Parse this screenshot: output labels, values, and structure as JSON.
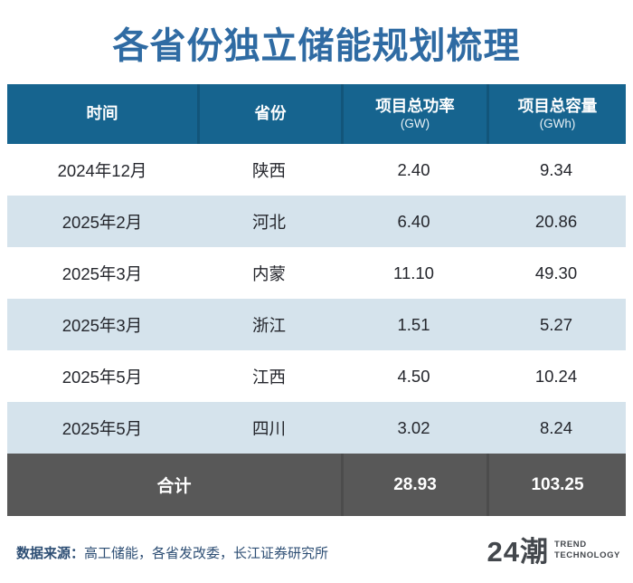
{
  "title": "各省份独立储能规划梳理",
  "table": {
    "columns": [
      {
        "label": "时间",
        "unit": ""
      },
      {
        "label": "省份",
        "unit": ""
      },
      {
        "label": "项目总功率",
        "unit": "(GW)"
      },
      {
        "label": "项目总容量",
        "unit": "(GWh)"
      }
    ],
    "rows": [
      {
        "time": "2024年12月",
        "province": "陕西",
        "power": "2.40",
        "capacity": "9.34"
      },
      {
        "time": "2025年2月",
        "province": "河北",
        "power": "6.40",
        "capacity": "20.86"
      },
      {
        "time": "2025年3月",
        "province": "内蒙",
        "power": "11.10",
        "capacity": "49.30"
      },
      {
        "time": "2025年3月",
        "province": "浙江",
        "power": "1.51",
        "capacity": "5.27"
      },
      {
        "time": "2025年5月",
        "province": "江西",
        "power": "4.50",
        "capacity": "10.24"
      },
      {
        "time": "2025年5月",
        "province": "四川",
        "power": "3.02",
        "capacity": "8.24"
      }
    ],
    "total": {
      "label": "合计",
      "power": "28.93",
      "capacity": "103.25"
    }
  },
  "footer": {
    "source_label": "数据来源：",
    "source_text": "高工储能，各省发改委，长江证券研究所",
    "logo_text": "24潮",
    "logo_sub1": "TREND",
    "logo_sub2": "TECHNOLOGY"
  },
  "colors": {
    "title_text": "#2F6BA3",
    "header_bg": "#16648F",
    "header_text": "#FFFFFF",
    "row_alt_bg": "#D5E3EC",
    "body_text": "#24262C",
    "total_bg": "#585858",
    "total_text": "#FFFFFF",
    "footer_text": "#2D4E74",
    "logo_text": "#43474C"
  },
  "chart_data": {
    "type": "table",
    "title": "各省份独立储能规划梳理",
    "columns": [
      "时间",
      "省份",
      "项目总功率 (GW)",
      "项目总容量 (GWh)"
    ],
    "rows": [
      [
        "2024年12月",
        "陕西",
        2.4,
        9.34
      ],
      [
        "2025年2月",
        "河北",
        6.4,
        20.86
      ],
      [
        "2025年3月",
        "内蒙",
        11.1,
        49.3
      ],
      [
        "2025年3月",
        "浙江",
        1.51,
        5.27
      ],
      [
        "2025年5月",
        "江西",
        4.5,
        10.24
      ],
      [
        "2025年5月",
        "四川",
        3.02,
        8.24
      ]
    ],
    "total_row": [
      "合计",
      28.93,
      103.25
    ],
    "source": "高工储能，各省发改委，长江证券研究所"
  }
}
